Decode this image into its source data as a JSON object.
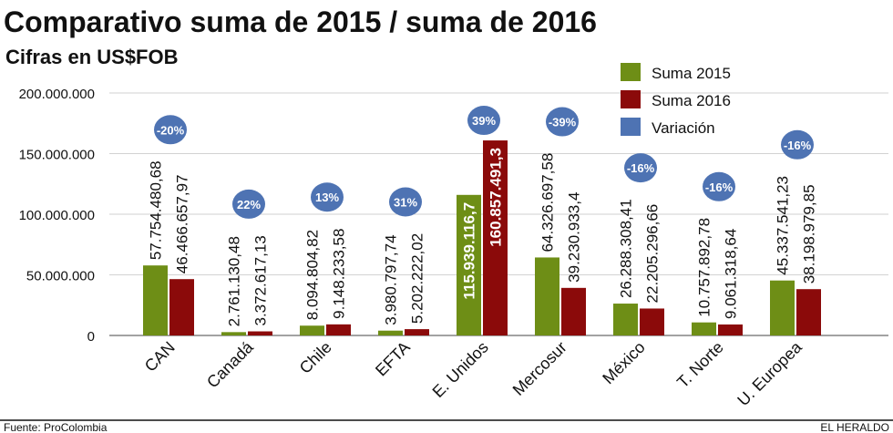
{
  "chart_data": {
    "type": "bar",
    "title": "Comparativo suma de 2015 / suma de 2016",
    "subtitle": "Cifras en US$FOB",
    "categories": [
      "CAN",
      "Canadá",
      "Chile",
      "EFTA",
      "E. Unidos",
      "Mercosur",
      "México",
      "T. Norte",
      "U. Europea"
    ],
    "series": [
      {
        "name": "Suma 2015",
        "color": "#6e8e16",
        "values": [
          57754480.68,
          2761130.48,
          8094804.82,
          3980797.74,
          115939116.7,
          64326697.58,
          26288308.41,
          10757892.78,
          45337541.23
        ],
        "labels": [
          "57.754.480,68",
          "2.761.130,48",
          "8.094.804,82",
          "3.980.797,74",
          "115.939.116,7",
          "64.326.697,58",
          "26.288.308,41",
          "10.757.892,78",
          "45.337.541,23"
        ]
      },
      {
        "name": "Suma 2016",
        "color": "#8b0a0a",
        "values": [
          46466657.97,
          3372617.13,
          9148233.58,
          5202222.02,
          160857491.3,
          39230933.4,
          22205296.66,
          9061318.64,
          38198979.85
        ],
        "labels": [
          "46.466.657,97",
          "3.372.617,13",
          "9.148.233,58",
          "5.202.222,02",
          "160.857.491,3",
          "39.230.933,4",
          "22.205.296,66",
          "9.061.318,64",
          "38.198.979,85"
        ]
      }
    ],
    "variation": {
      "name": "Variación",
      "color": "#4e73b3",
      "labels": [
        "-20%",
        "22%",
        "13%",
        "31%",
        "39%",
        "-39%",
        "-16%",
        "-16%",
        "-16%"
      ]
    },
    "ylim": [
      0,
      200000000
    ],
    "yticks": [
      0,
      50000000,
      100000000,
      150000000,
      200000000
    ],
    "ytick_labels": [
      "0",
      "50.000.000",
      "100.000.000",
      "150.000.000",
      "200.000.000"
    ],
    "grid": true,
    "legend_position": "top-right",
    "xlabel": "",
    "ylabel": ""
  },
  "footer": {
    "source": "Fuente: ProColombia",
    "brand": "EL HERALDO"
  }
}
